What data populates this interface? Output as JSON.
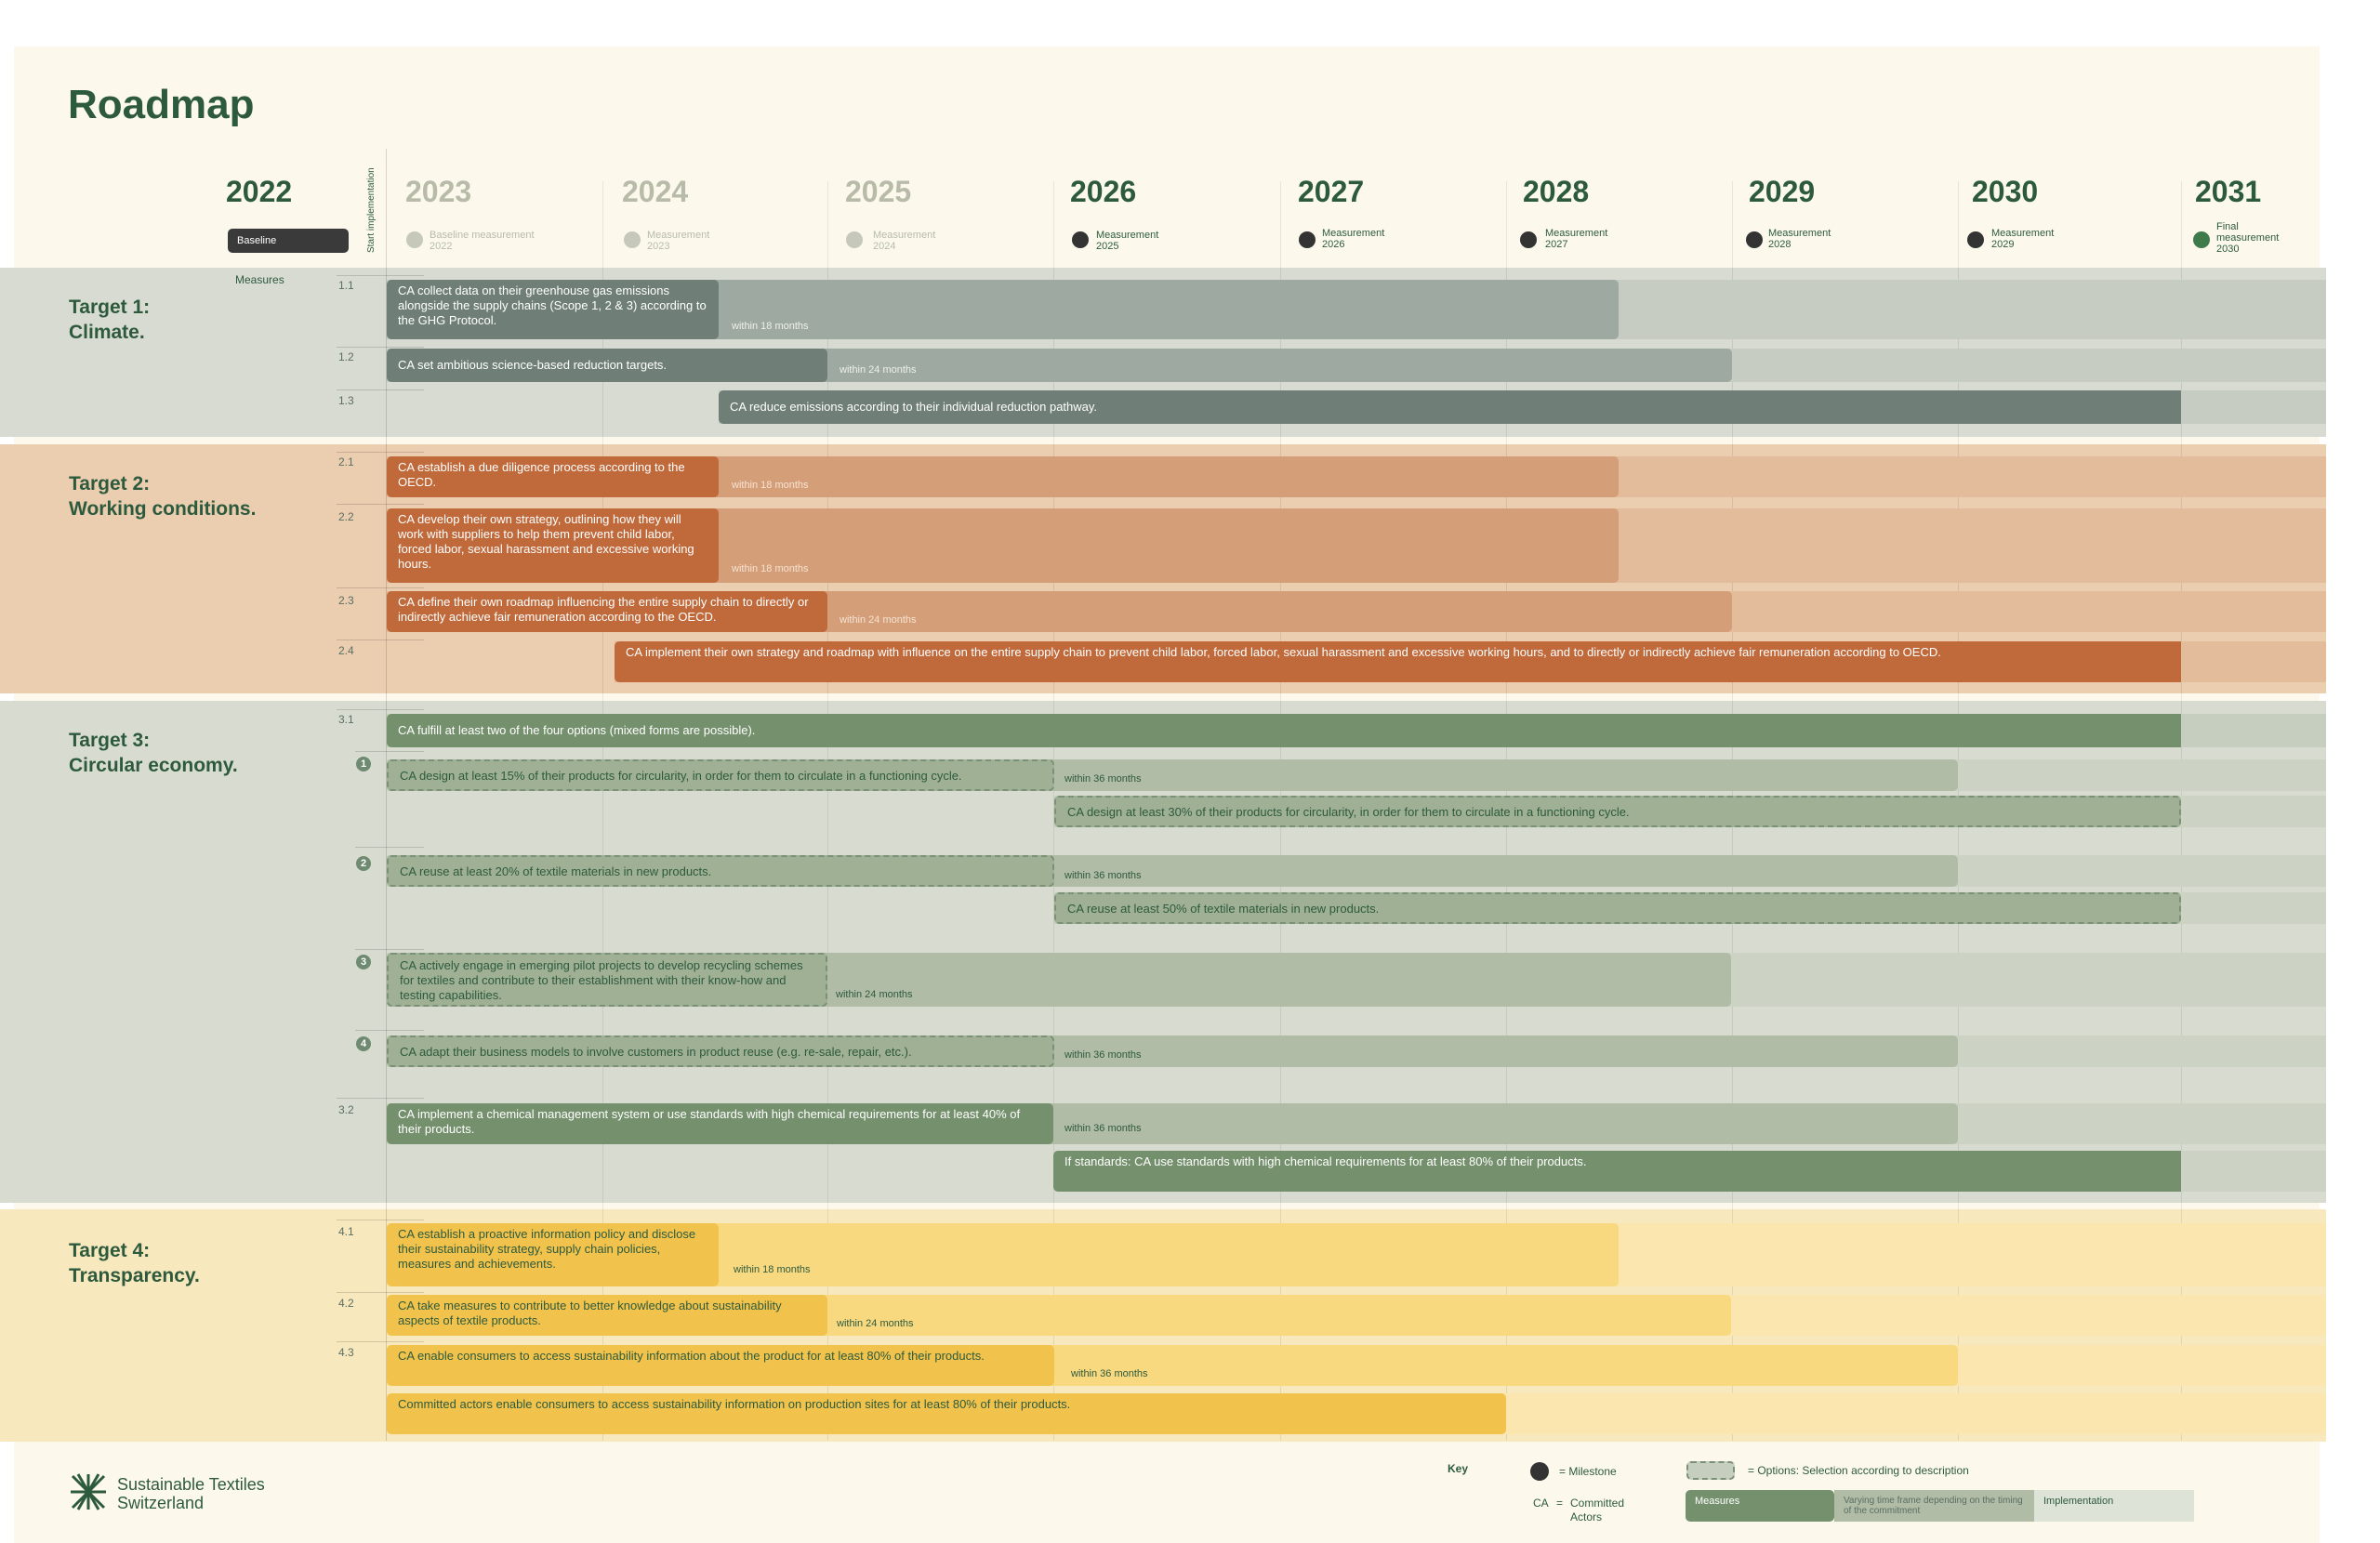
{
  "title": "Roadmap",
  "baseline_year": "2022",
  "baseline_badge": "Baseline",
  "measures_label": "Measures",
  "start_label": "Start implementation",
  "years": [
    "2023",
    "2024",
    "2025",
    "2026",
    "2027",
    "2028",
    "2029",
    "2030",
    "2031"
  ],
  "milestones": [
    {
      "l1": "Baseline measurement",
      "l2": "2022",
      "l3": ""
    },
    {
      "l1": "Measurement",
      "l2": "2023",
      "l3": ""
    },
    {
      "l1": "Measurement",
      "l2": "2024",
      "l3": ""
    },
    {
      "l1": "Measurement",
      "l2": "2025",
      "l3": ""
    },
    {
      "l1": "Measurement",
      "l2": "2026",
      "l3": ""
    },
    {
      "l1": "Measurement",
      "l2": "2027",
      "l3": ""
    },
    {
      "l1": "Measurement",
      "l2": "2028",
      "l3": ""
    },
    {
      "l1": "Measurement",
      "l2": "2029",
      "l3": ""
    },
    {
      "l1": "Final",
      "l2": "measurement",
      "l3": "2030"
    }
  ],
  "targets": [
    {
      "line1": "Target 1:",
      "line2": "Climate."
    },
    {
      "line1": "Target 2:",
      "line2": "Working conditions."
    },
    {
      "line1": "Target 3:",
      "line2": "Circular economy."
    },
    {
      "line1": "Target 4:",
      "line2": "Transparency."
    }
  ],
  "row_ids": [
    "1.1",
    "1.2",
    "1.3",
    "2.1",
    "2.2",
    "2.3",
    "2.4",
    "3.1",
    "3.2",
    "4.1",
    "4.2",
    "4.3"
  ],
  "option_numbers": [
    "1",
    "2",
    "3",
    "4"
  ],
  "measures": {
    "m11": "CA collect data on their greenhouse gas emissions alongside the supply chains (Scope 1, 2 & 3) according to the GHG Protocol.",
    "m12": "CA set ambitious science-based reduction targets.",
    "m13": "CA reduce emissions according to their individual reduction pathway.",
    "m21": "CA establish a due diligence process according to the OECD.",
    "m22": "CA develop their own strategy, outlining how they will work with suppliers to help them prevent child labor, forced labor, sexual harassment and excessive working hours.",
    "m23": "CA define their own roadmap influencing the entire supply chain to directly or indirectly achieve fair remuneration according to the OECD.",
    "m24": "CA implement their own strategy and roadmap with influence on the entire supply chain to prevent child labor, forced labor, sexual harassment and excessive working hours, and to directly or indirectly achieve fair remuneration according to OECD.",
    "m31": "CA fulfill at least two of the four options (mixed forms are possible).",
    "o1a": "CA design at least 15% of their products for circularity, in order for them to circulate in a functioning cycle.",
    "o1b": "CA design at least 30% of their products for circularity, in order for them to circulate in a functioning cycle.",
    "o2a": "CA reuse at least 20% of textile materials in new products.",
    "o2b": "CA reuse at least 50% of textile materials in new products.",
    "o3": "CA actively engage in emerging pilot projects to develop recycling schemes for textiles and contribute to their establishment with their know-how and testing capabilities.",
    "o4": "CA adapt their business models to involve customers in product reuse (e.g. re-sale, repair, etc.).",
    "m32": "CA implement a chemical management system or use standards with high chemical requirements for at least 40% of their products.",
    "m32b": "If standards: CA use standards with high chemical requirements for at least 80% of their products.",
    "m41": "CA establish a proactive information policy and disclose their sustainability strategy, supply chain policies, measures and achievements.",
    "m42": "CA take measures to contribute to better knowledge about sustainability aspects of textile products.",
    "m43": "CA enable consumers to access sustainability information about the product for at least 80% of their products.",
    "m43b": "Committed actors enable consumers to access sustainability information on production sites for at least 80% of their products."
  },
  "within": {
    "w18": "within 18 months",
    "w24": "within 24 months",
    "w36": "within 36 months"
  },
  "footer": {
    "logo_line1": "Sustainable Textiles",
    "logo_line2": "Switzerland",
    "key_title": "Key",
    "milestone": "= Milestone",
    "options": "= Options: Selection according to description",
    "ca": "CA",
    "ca_eq": "=",
    "committed1": "Committed",
    "committed2": "Actors",
    "measures": "Measures",
    "varying": "Varying time frame depending on the timing of the commitment",
    "implementation": "Implementation"
  },
  "colors": {
    "green_dark": "#2d5a3d",
    "t1": "#6f7f78",
    "t2": "#c0693a",
    "t3": "#75906d",
    "t4": "#f2c34c"
  }
}
